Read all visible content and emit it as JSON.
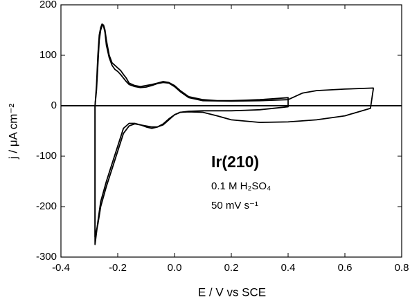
{
  "chart_data": {
    "type": "line",
    "xlabel": "E / V vs SCE",
    "ylabel": "j / μA cm⁻²",
    "annotations": [
      "Ir(210)",
      "0.1 M H₂SO₄",
      "50 mV s⁻¹"
    ],
    "reference_line": 0,
    "xlim": [
      -0.4,
      0.8
    ],
    "xticks": [
      -0.4,
      -0.2,
      {
        "value": 0,
        "label": "0.0"
      },
      0.2,
      0.4,
      0.6,
      0.8
    ],
    "ylim": [
      -300,
      200
    ],
    "yticks": [
      -300,
      -200,
      -100,
      0,
      100,
      200
    ],
    "series": [
      {
        "color": "#000000",
        "x": [
          -0.28,
          -0.275,
          -0.27,
          -0.265,
          -0.26,
          -0.255,
          -0.25,
          -0.245,
          -0.24,
          -0.23,
          -0.22,
          -0.21,
          -0.2,
          -0.19,
          -0.18,
          -0.17,
          -0.16,
          -0.14,
          -0.12,
          -0.1,
          -0.08,
          -0.06,
          -0.04,
          -0.02,
          0,
          0.02,
          0.05,
          0.1,
          0.15,
          0.2,
          0.25,
          0.3,
          0.35,
          0.4,
          0.4,
          0.35,
          0.3,
          0.25,
          0.2,
          0.15,
          0.1,
          0.05,
          0.02,
          0,
          -0.02,
          -0.04,
          -0.06,
          -0.08,
          -0.1,
          -0.12,
          -0.14,
          -0.16,
          -0.18,
          -0.2,
          -0.22,
          -0.24,
          -0.26,
          -0.27,
          -0.28,
          -0.28
        ],
        "values": [
          0,
          30,
          80,
          130,
          150,
          158,
          160,
          150,
          130,
          100,
          85,
          80,
          75,
          70,
          62,
          55,
          45,
          40,
          38,
          40,
          42,
          45,
          48,
          46,
          40,
          30,
          18,
          12,
          10,
          10,
          11,
          12,
          14,
          16,
          -2,
          -5,
          -8,
          -9,
          -10,
          -10,
          -10,
          -11,
          -13,
          -18,
          -28,
          -38,
          -42,
          -42,
          -40,
          -38,
          -36,
          -40,
          -55,
          -90,
          -125,
          -160,
          -200,
          -235,
          -260,
          0
        ]
      },
      {
        "color": "#000000",
        "x": [
          -0.28,
          -0.275,
          -0.27,
          -0.265,
          -0.26,
          -0.255,
          -0.25,
          -0.245,
          -0.24,
          -0.23,
          -0.22,
          -0.21,
          -0.2,
          -0.19,
          -0.18,
          -0.17,
          -0.16,
          -0.14,
          -0.12,
          -0.1,
          -0.08,
          -0.06,
          -0.04,
          -0.02,
          0,
          0.02,
          0.05,
          0.1,
          0.2,
          0.3,
          0.4,
          0.45,
          0.5,
          0.6,
          0.7,
          0.7,
          0.69,
          0.6,
          0.5,
          0.4,
          0.3,
          0.2,
          0.15,
          0.1,
          0.05,
          0.02,
          0,
          -0.02,
          -0.04,
          -0.06,
          -0.08,
          -0.1,
          -0.12,
          -0.14,
          -0.16,
          -0.18,
          -0.2,
          -0.22,
          -0.24,
          -0.26,
          -0.27,
          -0.28,
          -0.28
        ],
        "values": [
          0,
          40,
          100,
          140,
          155,
          162,
          158,
          145,
          120,
          95,
          80,
          72,
          68,
          62,
          55,
          48,
          42,
          38,
          36,
          37,
          40,
          44,
          46,
          45,
          38,
          28,
          16,
          10,
          9,
          10,
          12,
          25,
          30,
          33,
          35,
          33,
          -5,
          -20,
          -28,
          -32,
          -33,
          -28,
          -20,
          -13,
          -12,
          -13,
          -18,
          -26,
          -36,
          -42,
          -45,
          -42,
          -38,
          -35,
          -35,
          -45,
          -80,
          -115,
          -150,
          -190,
          -230,
          -275,
          0
        ]
      }
    ]
  }
}
